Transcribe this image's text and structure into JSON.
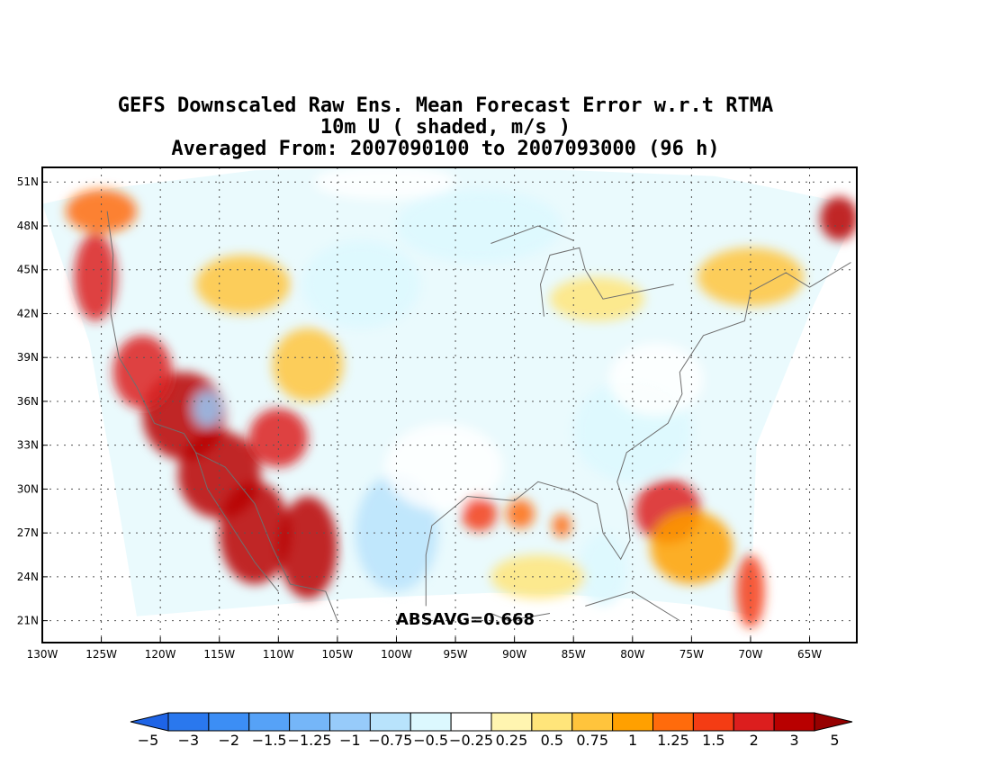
{
  "title": {
    "line1": "GEFS Downscaled Raw Ens. Mean Forecast Error w.r.t RTMA",
    "line2": "10m U ( shaded, m/s )",
    "line3": "Averaged From: 2007090100 to 2007093000 (96 h)"
  },
  "annotation": "ABSAVG=0.668",
  "map": {
    "lon_range": [
      -130,
      -61
    ],
    "lat_range": [
      19.5,
      52
    ],
    "lon_ticks": [
      {
        "value": -130,
        "label": "130W"
      },
      {
        "value": -125,
        "label": "125W"
      },
      {
        "value": -120,
        "label": "120W"
      },
      {
        "value": -115,
        "label": "115W"
      },
      {
        "value": -110,
        "label": "110W"
      },
      {
        "value": -105,
        "label": "105W"
      },
      {
        "value": -100,
        "label": "100W"
      },
      {
        "value": -95,
        "label": "95W"
      },
      {
        "value": -90,
        "label": "90W"
      },
      {
        "value": -85,
        "label": "85W"
      },
      {
        "value": -80,
        "label": "80W"
      },
      {
        "value": -75,
        "label": "75W"
      },
      {
        "value": -70,
        "label": "70W"
      },
      {
        "value": -65,
        "label": "65W"
      }
    ],
    "lat_ticks": [
      {
        "value": 21,
        "label": "21N"
      },
      {
        "value": 24,
        "label": "24N"
      },
      {
        "value": 27,
        "label": "27N"
      },
      {
        "value": 30,
        "label": "30N"
      },
      {
        "value": 33,
        "label": "33N"
      },
      {
        "value": 36,
        "label": "36N"
      },
      {
        "value": 39,
        "label": "39N"
      },
      {
        "value": 42,
        "label": "42N"
      },
      {
        "value": 45,
        "label": "45N"
      },
      {
        "value": 48,
        "label": "48N"
      },
      {
        "value": 51,
        "label": "51N"
      }
    ],
    "grid": true,
    "field_features": [
      {
        "lon": -118,
        "lat": 35,
        "rlon": 3.5,
        "rlat": 3.0,
        "value": 2.2
      },
      {
        "lon": -115,
        "lat": 31,
        "rlon": 3.5,
        "rlat": 3.0,
        "value": 2.0
      },
      {
        "lon": -112,
        "lat": 27,
        "rlon": 3.0,
        "rlat": 3.5,
        "value": 2.2
      },
      {
        "lon": -121.5,
        "lat": 38,
        "rlon": 2.5,
        "rlat": 2.5,
        "value": 1.7
      },
      {
        "lon": -107.5,
        "lat": 26,
        "rlon": 2.5,
        "rlat": 3.5,
        "value": 2.0
      },
      {
        "lon": -110,
        "lat": 33.5,
        "rlon": 2.5,
        "rlat": 2.0,
        "value": 1.6
      },
      {
        "lon": -125.5,
        "lat": 44.5,
        "rlon": 1.8,
        "rlat": 3.0,
        "value": 1.5
      },
      {
        "lon": -125,
        "lat": 49,
        "rlon": 3.0,
        "rlat": 1.5,
        "value": 1.2
      },
      {
        "lon": -107.5,
        "lat": 38.5,
        "rlon": 3.0,
        "rlat": 2.5,
        "value": 0.7
      },
      {
        "lon": -113,
        "lat": 44,
        "rlon": 4.0,
        "rlat": 2.0,
        "value": 0.5
      },
      {
        "lon": -116,
        "lat": 35.5,
        "rlon": 1.2,
        "rlat": 1.2,
        "value": -1.2
      },
      {
        "lon": -100,
        "lat": 27,
        "rlon": 3.5,
        "rlat": 4.0,
        "value": -1.0
      },
      {
        "lon": -103,
        "lat": 44,
        "rlon": 5.0,
        "rlat": 3.0,
        "value": -0.7
      },
      {
        "lon": -93,
        "lat": 48,
        "rlon": 7.0,
        "rlat": 2.5,
        "value": -0.6
      },
      {
        "lon": -80,
        "lat": 34,
        "rlon": 5.0,
        "rlat": 3.5,
        "value": -0.6
      },
      {
        "lon": -78,
        "lat": 37.5,
        "rlon": 4.0,
        "rlat": 2.5,
        "value": -0.5
      },
      {
        "lon": -82.5,
        "lat": 24.5,
        "rlon": 2.0,
        "rlat": 2.5,
        "value": -0.7
      },
      {
        "lon": -96,
        "lat": 31.5,
        "rlon": 5.0,
        "rlat": 3.0,
        "value": -0.3
      },
      {
        "lon": -77,
        "lat": 28.5,
        "rlon": 2.8,
        "rlat": 2.2,
        "value": 1.6
      },
      {
        "lon": -75,
        "lat": 26,
        "rlon": 3.5,
        "rlat": 2.5,
        "value": 0.8
      },
      {
        "lon": -93,
        "lat": 28.3,
        "rlon": 1.5,
        "rlat": 1.2,
        "value": 1.3
      },
      {
        "lon": -89.5,
        "lat": 28.3,
        "rlon": 1.2,
        "rlat": 1.0,
        "value": 1.0
      },
      {
        "lon": -86,
        "lat": 27.5,
        "rlon": 0.8,
        "rlat": 0.8,
        "value": 1.2
      },
      {
        "lon": -62.5,
        "lat": 48.5,
        "rlon": 1.6,
        "rlat": 1.5,
        "value": 2.0
      },
      {
        "lon": -70,
        "lat": 23,
        "rlon": 1.2,
        "rlat": 2.5,
        "value": 1.3
      },
      {
        "lon": -70,
        "lat": 44.5,
        "rlon": 4.5,
        "rlat": 2.0,
        "value": 0.6
      },
      {
        "lon": -83,
        "lat": 43,
        "rlon": 4.0,
        "rlat": 1.5,
        "value": 0.4
      },
      {
        "lon": -88,
        "lat": 24,
        "rlon": 4.0,
        "rlat": 1.5,
        "value": 0.4
      },
      {
        "lon": -101,
        "lat": 51,
        "rlon": 6.0,
        "rlat": 1.2,
        "value": -0.3
      }
    ],
    "shaded_points": [
      {
        "lon": -122,
        "lat": 21.3
      },
      {
        "lon": -116,
        "lat": 21.7
      },
      {
        "lon": -110,
        "lat": 22.1
      },
      {
        "lon": -104,
        "lat": 22.5
      },
      {
        "lon": -98,
        "lat": 22.7
      },
      {
        "lon": -92,
        "lat": 22.9
      },
      {
        "lon": -86,
        "lat": 22.8
      },
      {
        "lon": -80,
        "lat": 22.5
      },
      {
        "lon": -75,
        "lat": 22.1
      },
      {
        "lon": -70,
        "lat": 21.4
      },
      {
        "lon": -69.5,
        "lat": 33
      },
      {
        "lon": -65,
        "lat": 42
      },
      {
        "lon": -61.5,
        "lat": 48
      },
      {
        "lon": -61.5,
        "lat": 49.5
      },
      {
        "lon": -73,
        "lat": 51.4
      },
      {
        "lon": -85,
        "lat": 51.8
      },
      {
        "lon": -100,
        "lat": 52
      },
      {
        "lon": -112,
        "lat": 51.8
      },
      {
        "lon": -124,
        "lat": 50.6
      },
      {
        "lon": -130,
        "lat": 49.5
      },
      {
        "lon": -126,
        "lat": 40
      },
      {
        "lon": -124,
        "lat": 31
      }
    ]
  },
  "colorbar": {
    "colors": [
      "#1e64e6",
      "#2a78ee",
      "#3c8ef5",
      "#56a2f7",
      "#75b6f8",
      "#97cbfa",
      "#b8e3fc",
      "#dcf8fe",
      "#ffffff",
      "#fff5b0",
      "#ffe57a",
      "#ffc43c",
      "#ffa000",
      "#ff6b0c",
      "#f43c14",
      "#dc1e1e",
      "#b80000",
      "#960000"
    ],
    "labels": [
      "−5",
      "−3",
      "−2",
      "−1.5",
      "−1.25",
      "−1",
      "−0.75",
      "−0.5",
      "−0.25",
      "0.25",
      "0.5",
      "0.75",
      "1",
      "1.25",
      "1.5",
      "2",
      "3",
      "5"
    ],
    "bounds": [
      -5,
      -3,
      -2,
      -1.5,
      -1.25,
      -1,
      -0.75,
      -0.5,
      -0.25,
      0.25,
      0.5,
      0.75,
      1,
      1.25,
      1.5,
      2,
      3,
      5
    ]
  }
}
